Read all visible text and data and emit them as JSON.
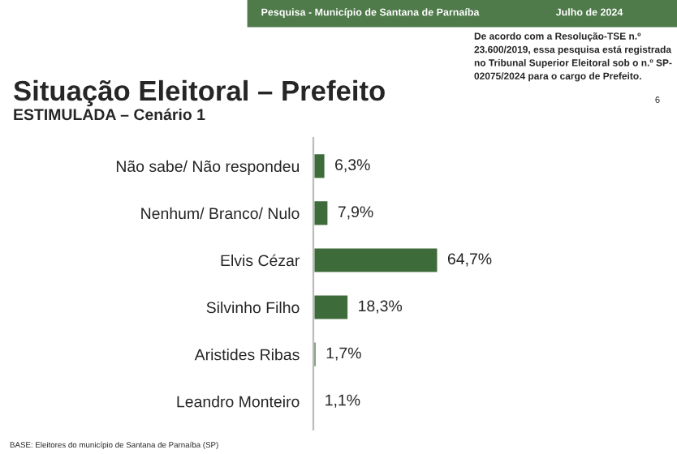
{
  "chart_data": {
    "type": "bar",
    "orientation": "horizontal",
    "title": "Situação Eleitoral – Prefeito",
    "subtitle": "ESTIMULADA – Cenário 1",
    "categories": [
      "Não sabe/ Não respondeu",
      "Nenhum/ Branco/ Nulo",
      "Elvis Cézar",
      "Silvinho Filho",
      "Aristides Ribas",
      "Leandro Monteiro"
    ],
    "values": [
      6.3,
      7.9,
      64.7,
      18.3,
      1.7,
      1.1
    ],
    "value_labels": [
      "6,3%",
      "7,9%",
      "64,7%",
      "18,3%",
      "1,7%",
      "1,1%"
    ],
    "color": "#3e6b3a",
    "annotations": [
      "Pesquisa - Município de Santana de Parnaíba",
      "Julho de 2024",
      "De acordo com a Resolução-TSE n.º\n23.600/2019, essa pesquisa está registrada\nno Tribunal Superior Eleitoral sob o n.º SP-\n02075/2024 para o cargo de Prefeito.",
      "6",
      "BASE: Eleitores do município de Santana de Parnaíba (SP)"
    ],
    "grid": false,
    "legend": false
  }
}
